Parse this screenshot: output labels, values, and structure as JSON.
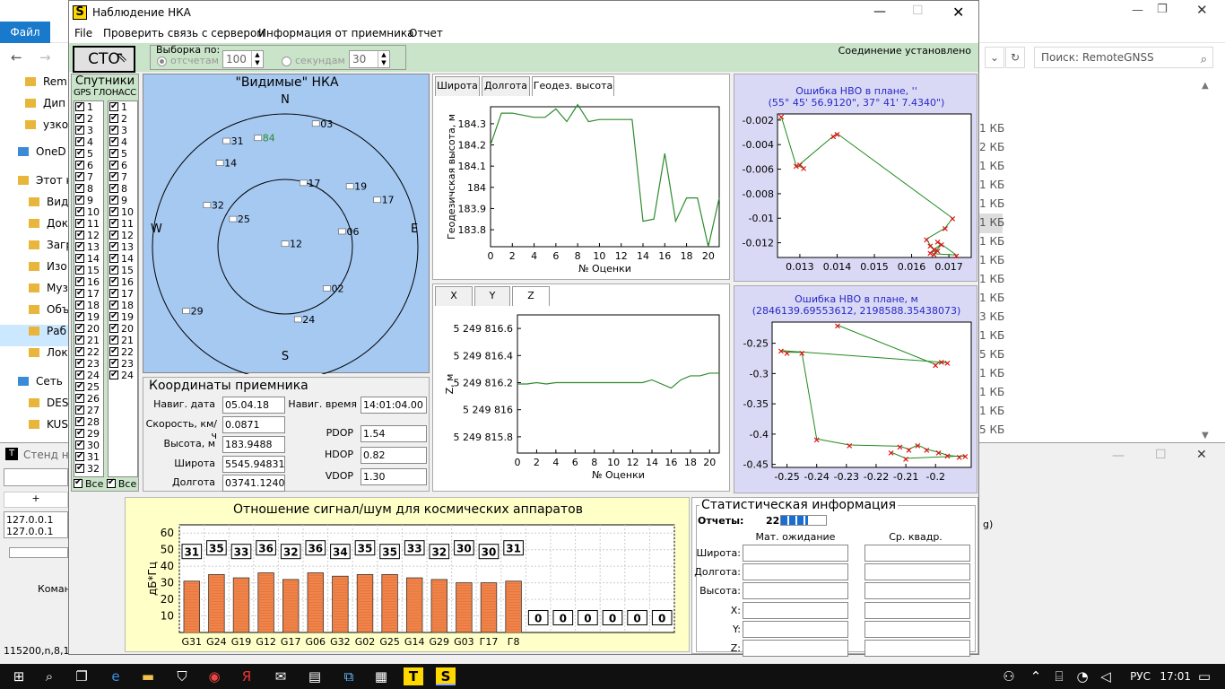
{
  "explorer": {
    "file_tab": "Файл",
    "search_placeholder": "Поиск: RemoteGNSS",
    "tree": [
      "Rem",
      "Дип",
      "узко",
      "OneD",
      "Этот к",
      "Виде",
      "Док",
      "Загр",
      "Изо",
      "Муз",
      "Объ",
      "Раб",
      "Лок",
      "Сеть",
      "DESI",
      "KUS"
    ],
    "sizes": [
      "1 КБ",
      "2 КБ",
      "1 КБ",
      "1 КБ",
      "1 КБ",
      "1 КБ",
      "1 КБ",
      "1 КБ",
      "1 КБ",
      "1 КБ",
      "3 КБ",
      "1 КБ",
      "5 КБ",
      "1 КБ",
      "1 КБ",
      "1 КБ",
      "5 КБ",
      "1 КБ"
    ]
  },
  "stend": {
    "title": "Стенд на",
    "tab_plus": "+",
    "ip1": "127.0.0.1",
    "ip2": "127.0.0.1",
    "cmd": "Коман",
    "port": "115200,n,8,1",
    "right_char": "g)"
  },
  "window": {
    "title": "Наблюдение НКА",
    "icon_letter": "S",
    "menu": [
      "File",
      "Проверить связь с сервером",
      "Информация от приемника",
      "Отчет"
    ]
  },
  "toolbar": {
    "stop_label": "СТО",
    "group_label": "Выборка по:",
    "radio1_label": "отсчетам",
    "radio1_value": "100",
    "radio2_label": "секундам",
    "radio2_value": "30",
    "connection": "Соединение установлено"
  },
  "satellites": {
    "title": "Спутники",
    "gps_header": "GPS",
    "glonass_header": "ГЛОНАСС",
    "gps": [
      "1",
      "2",
      "3",
      "4",
      "5",
      "6",
      "7",
      "8",
      "9",
      "10",
      "11",
      "12",
      "13",
      "14",
      "15",
      "16",
      "17",
      "18",
      "19",
      "20",
      "21",
      "22",
      "23",
      "24",
      "25",
      "26",
      "27",
      "28",
      "29",
      "30",
      "31",
      "32"
    ],
    "glonass": [
      "1",
      "2",
      "3",
      "4",
      "5",
      "6",
      "7",
      "8",
      "9",
      "10",
      "11",
      "12",
      "13",
      "14",
      "15",
      "16",
      "17",
      "18",
      "19",
      "20",
      "21",
      "22",
      "23",
      "24"
    ],
    "all_label": "Все"
  },
  "skyplot": {
    "title": "\"Видимые\" НКА",
    "north": "N",
    "south": "S",
    "west": "W",
    "east": "E",
    "sats": [
      {
        "id": "03",
        "az": 14,
        "el": 4
      },
      {
        "id": "31",
        "az": -29,
        "el": 8
      },
      {
        "id": "84",
        "az": -14,
        "el": 14,
        "color": "#2e8b2e"
      },
      {
        "id": "14",
        "az": -38,
        "el": 18
      },
      {
        "id": "17",
        "az": 16,
        "el": 45
      },
      {
        "id": "19",
        "az": 47,
        "el": 30
      },
      {
        "id": "17",
        "az": 63,
        "el": 20
      },
      {
        "id": "32",
        "az": -62,
        "el": 30
      },
      {
        "id": "25",
        "az": -62,
        "el": 50
      },
      {
        "id": "06",
        "az": 75,
        "el": 50
      },
      {
        "id": "12",
        "az": 0,
        "el": 88
      },
      {
        "id": "02",
        "az": 135,
        "el": 50
      },
      {
        "id": "29",
        "az": -123,
        "el": 10
      },
      {
        "id": "24",
        "az": 170,
        "el": 40
      }
    ]
  },
  "coords": {
    "title": "Координаты приемника",
    "nav_date_label": "Навиг. дата",
    "nav_date": "05.04.18",
    "nav_time_label": "Навиг. время",
    "nav_time": "14:01:04.00",
    "speed_label": "Скорость, км/ч",
    "speed": "0.0871",
    "height_label": "Высота, м",
    "height": "183.9488",
    "lat_label": "Широта",
    "lat": "5545.9483173",
    "lon_label": "Долгота",
    "lon": "03741.124001",
    "pdop_label": "PDOP",
    "pdop": "1.54",
    "hdop_label": "HDOP",
    "hdop": "0.82",
    "vdop_label": "VDOP",
    "vdop": "1.30"
  },
  "tabs_top": [
    "Широта",
    "Долгота",
    "Геодез. высота"
  ],
  "tabs_bottom": [
    "X",
    "Y",
    "Z"
  ],
  "chart_data": [
    {
      "type": "line",
      "ylabel": "Геодезичская высота, м",
      "xlabel": "№ Оценки",
      "xlim": [
        0,
        21
      ],
      "ylim": [
        183.72,
        184.38
      ],
      "xticks": [
        0,
        2,
        4,
        6,
        8,
        10,
        12,
        14,
        16,
        18,
        20
      ],
      "yticks": [
        183.8,
        183.9,
        184,
        184.1,
        184.2,
        184.3
      ],
      "ytick_labels": [
        "183.8",
        "183.9",
        "184",
        "184.1",
        "184.2",
        "184.3"
      ],
      "color": "#2e8b2e",
      "x": [
        0,
        1,
        2,
        3,
        4,
        5,
        6,
        7,
        8,
        9,
        10,
        11,
        12,
        13,
        14,
        15,
        16,
        17,
        18,
        19,
        20,
        21
      ],
      "y": [
        184.2,
        184.35,
        184.35,
        184.34,
        184.33,
        184.33,
        184.37,
        184.31,
        184.39,
        184.31,
        184.32,
        184.32,
        184.32,
        184.32,
        183.84,
        183.85,
        184.16,
        183.84,
        183.95,
        183.95,
        183.72,
        183.95
      ]
    },
    {
      "type": "line",
      "ylabel": "Z, м",
      "xlabel": "№ Оценки",
      "xlim": [
        0,
        21
      ],
      "ylim": [
        5249815.68,
        5249816.7
      ],
      "xticks": [
        0,
        2,
        4,
        6,
        8,
        10,
        12,
        14,
        16,
        18,
        20
      ],
      "yticks": [
        5249815.8,
        5249816,
        5249816.2,
        5249816.4,
        5249816.6
      ],
      "ytick_labels": [
        "5 249 815.8",
        "5 249 816",
        "5 249 816.2",
        "5 249 816.4",
        "5 249 816.6"
      ],
      "color": "#2e8b2e",
      "x": [
        0,
        1,
        2,
        3,
        4,
        5,
        6,
        7,
        8,
        9,
        10,
        11,
        12,
        13,
        14,
        15,
        16,
        17,
        18,
        19,
        20,
        21
      ],
      "y": [
        5249816.19,
        5249816.19,
        5249816.2,
        5249816.19,
        5249816.2,
        5249816.2,
        5249816.2,
        5249816.2,
        5249816.2,
        5249816.2,
        5249816.2,
        5249816.2,
        5249816.2,
        5249816.2,
        5249816.22,
        5249816.19,
        5249816.16,
        5249816.22,
        5249816.25,
        5249816.25,
        5249816.27,
        5249816.27
      ]
    },
    {
      "type": "scatter",
      "title": "Ошибка НВО в плане, ''",
      "subtitle": "(55° 45' 56.9120\", 37° 41' 7.4340\")",
      "xlim": [
        0.0124,
        0.0176
      ],
      "ylim": [
        -0.0132,
        -0.0015
      ],
      "xticks": [
        0.013,
        0.014,
        0.015,
        0.016,
        0.017
      ],
      "xtick_labels": [
        "0.013",
        "0.014",
        "0.015",
        "0.016",
        "0.017"
      ],
      "yticks": [
        -0.012,
        -0.01,
        -0.008,
        -0.006,
        -0.004,
        -0.002
      ],
      "ytick_labels": [
        "-0.012",
        "-0.01",
        "-0.008",
        "-0.006",
        "-0.004",
        "-0.002"
      ],
      "points": [
        [
          0.0125,
          -0.0017
        ],
        [
          0.0129,
          -0.0057
        ],
        [
          0.0131,
          -0.0059
        ],
        [
          0.013,
          -0.0056
        ],
        [
          0.0139,
          -0.0033
        ],
        [
          0.014,
          -0.0031
        ],
        [
          0.0171,
          -0.01
        ],
        [
          0.0169,
          -0.0108
        ],
        [
          0.0164,
          -0.0117
        ],
        [
          0.0165,
          -0.0122
        ],
        [
          0.0166,
          -0.0125
        ],
        [
          0.0167,
          -0.0126
        ],
        [
          0.0165,
          -0.0128
        ],
        [
          0.0168,
          -0.0121
        ],
        [
          0.0166,
          -0.0129
        ],
        [
          0.0172,
          -0.013
        ],
        [
          0.0167,
          -0.0119
        ]
      ]
    },
    {
      "type": "scatter",
      "title": "Ошибка НВО в плане, м",
      "subtitle": "(2846139.69553612, 2198588.35438073)",
      "xlim": [
        -0.255,
        -0.188
      ],
      "ylim": [
        -0.455,
        -0.215
      ],
      "xticks": [
        -0.25,
        -0.24,
        -0.23,
        -0.22,
        -0.21,
        -0.2
      ],
      "xtick_labels": [
        "-0.25",
        "-0.24",
        "-0.23",
        "-0.22",
        "-0.21",
        "-0.2"
      ],
      "yticks": [
        -0.45,
        -0.4,
        -0.35,
        -0.3,
        -0.25
      ],
      "ytick_labels": [
        "-0.45",
        "-0.4",
        "-0.35",
        "-0.3",
        "-0.25"
      ],
      "points": [
        [
          -0.233,
          -0.22
        ],
        [
          -0.2,
          -0.285
        ],
        [
          -0.198,
          -0.28
        ],
        [
          -0.196,
          -0.282
        ],
        [
          -0.252,
          -0.262
        ],
        [
          -0.25,
          -0.265
        ],
        [
          -0.245,
          -0.265
        ],
        [
          -0.24,
          -0.408
        ],
        [
          -0.229,
          -0.418
        ],
        [
          -0.212,
          -0.42
        ],
        [
          -0.209,
          -0.425
        ],
        [
          -0.206,
          -0.418
        ],
        [
          -0.203,
          -0.425
        ],
        [
          -0.199,
          -0.43
        ],
        [
          -0.196,
          -0.435
        ],
        [
          -0.192,
          -0.437
        ],
        [
          -0.19,
          -0.436
        ],
        [
          -0.21,
          -0.44
        ],
        [
          -0.215,
          -0.43
        ]
      ]
    },
    {
      "type": "bar",
      "title": "Отношение сигнал/шум для космических аппаратов",
      "ylabel": "дБ*Гц",
      "ylim": [
        0,
        65
      ],
      "yticks": [
        10,
        20,
        30,
        40,
        50,
        60
      ],
      "categories": [
        "G31",
        "G24",
        "G19",
        "G12",
        "G17",
        "G06",
        "G32",
        "G02",
        "G25",
        "G14",
        "G29",
        "G03",
        "Г17",
        "Г8",
        "",
        "",
        "",
        "",
        "",
        ""
      ],
      "values": [
        31,
        35,
        33,
        36,
        32,
        36,
        34,
        35,
        35,
        33,
        32,
        30,
        30,
        31,
        0,
        0,
        0,
        0,
        0,
        0
      ],
      "color": "#f0844a"
    }
  ],
  "stats": {
    "title": "Статистическая информация",
    "reports_label": "Отчеты:",
    "reports_value": "22",
    "progress": 0.6,
    "col1": "Мат. ожидание",
    "col2": "Ср. квадр. отклонение",
    "rows": [
      "Широта:",
      "Долгота:",
      "Высота:",
      "X:",
      "Y:",
      "Z:"
    ]
  },
  "taskbar": {
    "lang": "РУС",
    "time": "17:01"
  }
}
